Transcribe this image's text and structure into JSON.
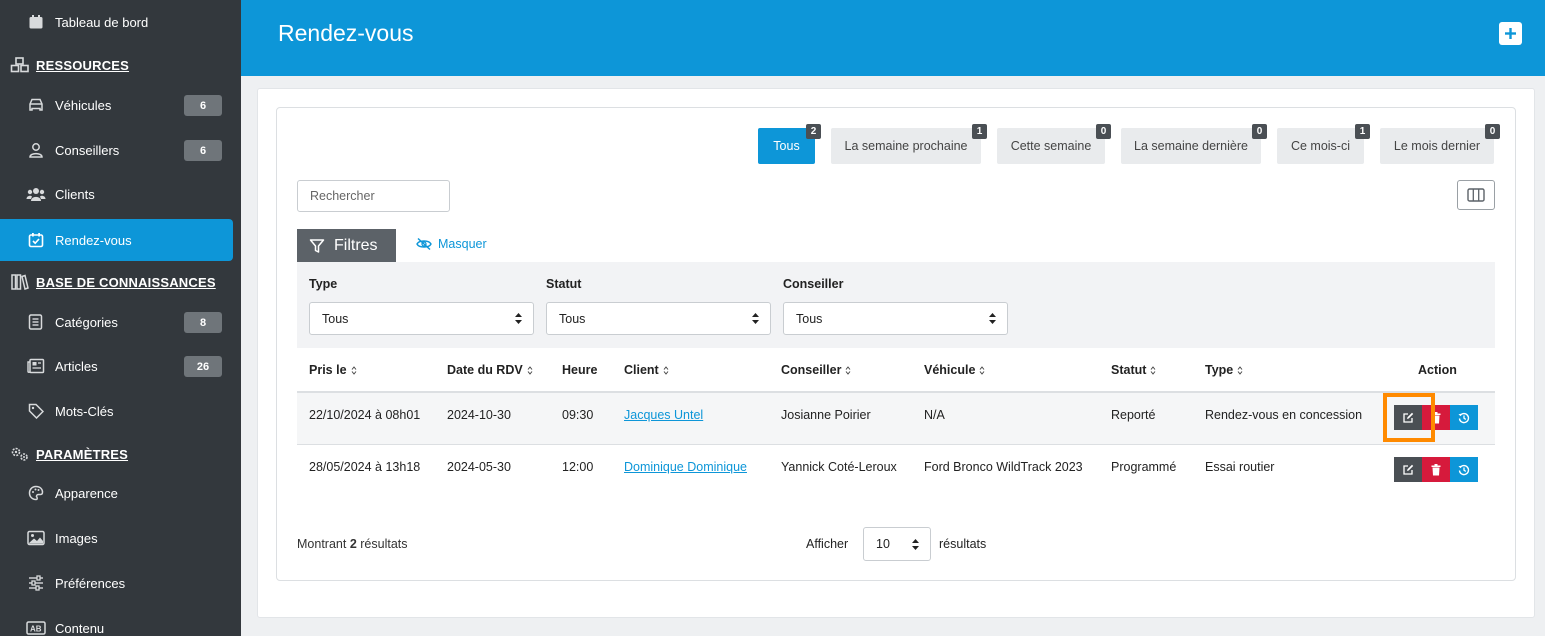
{
  "sidebar": {
    "top_item": "Tableau de bord",
    "sections": {
      "resources": "RESSOURCES",
      "knowledge": "BASE DE CONNAISSANCES",
      "settings": "PARAMÈTRES"
    },
    "items": [
      {
        "label": "Véhicules",
        "badge": "6",
        "icon": "car-icon"
      },
      {
        "label": "Conseillers",
        "badge": "6",
        "icon": "user-icon"
      },
      {
        "label": "Clients",
        "icon": "users-icon"
      },
      {
        "label": "Rendez-vous",
        "icon": "calendar-check-icon",
        "active": true
      },
      {
        "label": "Catégories",
        "badge": "8",
        "icon": "list-icon"
      },
      {
        "label": "Articles",
        "badge": "26",
        "icon": "newspaper-icon"
      },
      {
        "label": "Mots-Clés",
        "icon": "tag-icon"
      },
      {
        "label": "Apparence",
        "icon": "palette-icon"
      },
      {
        "label": "Images",
        "icon": "image-icon"
      },
      {
        "label": "Préférences",
        "icon": "sliders-icon"
      },
      {
        "label": "Contenu",
        "icon": "text-box-icon"
      }
    ]
  },
  "header": {
    "title": "Rendez-vous",
    "add_icon": "plus-icon"
  },
  "tabs": [
    {
      "label": "Tous",
      "count": "2",
      "active": true
    },
    {
      "label": "La semaine prochaine",
      "count": "1"
    },
    {
      "label": "Cette semaine",
      "count": "0"
    },
    {
      "label": "La semaine dernière",
      "count": "0"
    },
    {
      "label": "Ce mois-ci",
      "count": "1"
    },
    {
      "label": "Le mois dernier",
      "count": "0"
    }
  ],
  "search": {
    "placeholder": "Rechercher"
  },
  "filters": {
    "button_label": "Filtres",
    "hide_label": "Masquer",
    "type": {
      "label": "Type",
      "value": "Tous"
    },
    "status": {
      "label": "Statut",
      "value": "Tous"
    },
    "advisor": {
      "label": "Conseiller",
      "value": "Tous"
    }
  },
  "table": {
    "headers": [
      "Pris le",
      "Date du RDV",
      "Heure",
      "Client",
      "Conseiller",
      "Véhicule",
      "Statut",
      "Type",
      "Action"
    ],
    "rows": [
      [
        "22/10/2024 à 08h01",
        "2024-10-30",
        "09:30",
        "Jacques Untel",
        "Josianne Poirier",
        "N/A",
        "Reporté",
        "Rendez-vous en concession"
      ],
      [
        "28/05/2024 à 13h18",
        "2024-05-30",
        "12:00",
        "Dominique Dominique",
        "Yannick Coté-Leroux",
        "Ford Bronco WildTrack 2023",
        "Programmé",
        "Essai routier"
      ]
    ]
  },
  "footer": {
    "showing_prefix": "Montrant",
    "showing_count": "2",
    "showing_suffix": "résultats",
    "show_label": "Afficher",
    "page_size": "10",
    "results_label": "résultats"
  },
  "colors": {
    "accent": "#0d96d8",
    "sidebar": "#33383d",
    "danger": "#d61a3c",
    "highlight": "#ff8a00"
  }
}
